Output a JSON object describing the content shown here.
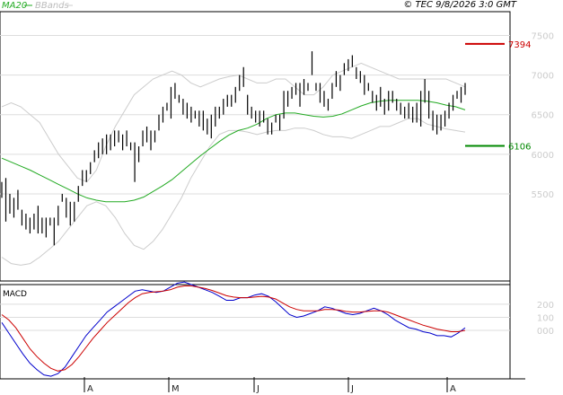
{
  "legend": {
    "ma20_label": "MA20",
    "bbands_label": "BBands",
    "ma20_color": "#22aa22",
    "bbands_color": "#cccccc"
  },
  "header": {
    "info": "© TEC 9/8/2026 3:0 GMT"
  },
  "macd_label": "MACD",
  "levels": {
    "resistance": {
      "label": "7394",
      "value": 7394,
      "color": "#cc0000"
    },
    "support": {
      "label": "6106",
      "value": 6106,
      "color": "#008800"
    }
  },
  "chart_data": {
    "type": "line",
    "price_panel": {
      "ylim": [
        4400,
        7800
      ],
      "yticks": [
        "5500",
        "6000",
        "6500",
        "7000",
        "7500"
      ],
      "price_ticks": [
        [
          5450,
          5650
        ],
        [
          5150,
          5700
        ],
        [
          5250,
          5500
        ],
        [
          5200,
          5450
        ],
        [
          5300,
          5550
        ],
        [
          5100,
          5300
        ],
        [
          5050,
          5250
        ],
        [
          5000,
          5200
        ],
        [
          5050,
          5250
        ],
        [
          5000,
          5350
        ],
        [
          5000,
          5200
        ],
        [
          4950,
          5200
        ],
        [
          5100,
          5200
        ],
        [
          4850,
          5200
        ],
        [
          5100,
          5350
        ],
        [
          5400,
          5500
        ],
        [
          5200,
          5450
        ],
        [
          5100,
          5400
        ],
        [
          5150,
          5400
        ],
        [
          5400,
          5600
        ],
        [
          5600,
          5800
        ],
        [
          5650,
          5800
        ],
        [
          5750,
          5900
        ],
        [
          5900,
          6050
        ],
        [
          5950,
          6150
        ],
        [
          6000,
          6200
        ],
        [
          6000,
          6250
        ],
        [
          6050,
          6250
        ],
        [
          6100,
          6300
        ],
        [
          6150,
          6300
        ],
        [
          6050,
          6250
        ],
        [
          6100,
          6300
        ],
        [
          6050,
          6150
        ],
        [
          5650,
          6150
        ],
        [
          5900,
          6100
        ],
        [
          6100,
          6300
        ],
        [
          6150,
          6350
        ],
        [
          6050,
          6300
        ],
        [
          6150,
          6300
        ],
        [
          6300,
          6500
        ],
        [
          6400,
          6600
        ],
        [
          6550,
          6650
        ],
        [
          6450,
          6850
        ],
        [
          6700,
          6900
        ],
        [
          6650,
          6750
        ],
        [
          6500,
          6700
        ],
        [
          6450,
          6650
        ],
        [
          6400,
          6600
        ],
        [
          6450,
          6550
        ],
        [
          6350,
          6550
        ],
        [
          6300,
          6550
        ],
        [
          6250,
          6450
        ],
        [
          6200,
          6500
        ],
        [
          6350,
          6600
        ],
        [
          6450,
          6600
        ],
        [
          6500,
          6700
        ],
        [
          6600,
          6750
        ],
        [
          6600,
          6750
        ],
        [
          6650,
          6850
        ],
        [
          6800,
          7000
        ],
        [
          6850,
          7100
        ],
        [
          6500,
          6750
        ],
        [
          6450,
          6600
        ],
        [
          6400,
          6550
        ],
        [
          6350,
          6550
        ],
        [
          6400,
          6550
        ],
        [
          6250,
          6450
        ],
        [
          6250,
          6400
        ],
        [
          6400,
          6500
        ],
        [
          6300,
          6500
        ],
        [
          6450,
          6800
        ],
        [
          6600,
          6800
        ],
        [
          6700,
          6850
        ],
        [
          6750,
          6900
        ],
        [
          6600,
          6900
        ],
        [
          6750,
          6950
        ],
        [
          6800,
          6900
        ],
        [
          7000,
          7300
        ],
        [
          6800,
          6900
        ],
        [
          6650,
          6900
        ],
        [
          6600,
          6800
        ],
        [
          6550,
          6700
        ],
        [
          6700,
          6900
        ],
        [
          6850,
          7050
        ],
        [
          6800,
          7000
        ],
        [
          7000,
          7150
        ],
        [
          7050,
          7200
        ],
        [
          7100,
          7250
        ],
        [
          6950,
          7100
        ],
        [
          6900,
          7050
        ],
        [
          6750,
          7000
        ],
        [
          6800,
          6900
        ],
        [
          6650,
          6800
        ],
        [
          6550,
          6750
        ],
        [
          6600,
          6850
        ],
        [
          6500,
          6700
        ],
        [
          6550,
          6800
        ],
        [
          6650,
          6800
        ],
        [
          6550,
          6700
        ],
        [
          6500,
          6650
        ],
        [
          6450,
          6600
        ],
        [
          6450,
          6650
        ],
        [
          6400,
          6600
        ],
        [
          6400,
          6650
        ],
        [
          6350,
          6800
        ],
        [
          6650,
          6950
        ],
        [
          6450,
          6800
        ],
        [
          6300,
          6550
        ],
        [
          6250,
          6500
        ],
        [
          6300,
          6500
        ],
        [
          6350,
          6550
        ],
        [
          6450,
          6650
        ],
        [
          6550,
          6750
        ],
        [
          6700,
          6800
        ],
        [
          6650,
          6850
        ],
        [
          6750,
          6900
        ]
      ],
      "ma20": [
        5950,
        5900,
        5850,
        5800,
        5740,
        5680,
        5620,
        5560,
        5500,
        5450,
        5420,
        5400,
        5400,
        5400,
        5420,
        5460,
        5530,
        5600,
        5680,
        5780,
        5880,
        5980,
        6070,
        6160,
        6240,
        6300,
        6330,
        6380,
        6450,
        6500,
        6520,
        6520,
        6500,
        6480,
        6470,
        6480,
        6510,
        6560,
        6610,
        6650,
        6670,
        6680,
        6680,
        6680,
        6680,
        6670,
        6650,
        6620,
        6600,
        6560
      ],
      "bb_upper": [
        6600,
        6650,
        6600,
        6500,
        6400,
        6200,
        6000,
        5850,
        5700,
        5650,
        5800,
        6100,
        6350,
        6550,
        6750,
        6850,
        6950,
        7000,
        7050,
        7000,
        6900,
        6850,
        6900,
        6950,
        6980,
        7000,
        6950,
        6900,
        6900,
        6950,
        6950,
        6850,
        6750,
        6750,
        6850,
        7000,
        7050,
        7100,
        7150,
        7100,
        7050,
        7000,
        6950,
        6950,
        6950,
        6950,
        6950,
        6950,
        6900,
        6850
      ],
      "bb_lower": [
        4700,
        4620,
        4600,
        4620,
        4700,
        4800,
        4900,
        5050,
        5200,
        5350,
        5400,
        5350,
        5200,
        5000,
        4850,
        4800,
        4900,
        5050,
        5250,
        5450,
        5700,
        5900,
        6100,
        6250,
        6300,
        6300,
        6280,
        6250,
        6280,
        6300,
        6300,
        6330,
        6330,
        6300,
        6250,
        6220,
        6220,
        6200,
        6250,
        6300,
        6350,
        6350,
        6400,
        6450,
        6450,
        6380,
        6350,
        6320,
        6300,
        6280
      ]
    },
    "macd_panel": {
      "ylim": [
        -370,
        350
      ],
      "yticks": [
        "200",
        "100",
        "000"
      ],
      "series": [
        {
          "values": [
            60,
            -20,
            -100,
            -180,
            -250,
            -300,
            -340,
            -350,
            -330,
            -280,
            -200,
            -120,
            -40,
            20,
            80,
            140,
            180,
            220,
            260,
            300,
            310,
            300,
            290,
            300,
            330,
            360,
            370,
            350,
            330,
            310,
            290,
            260,
            230,
            230,
            250,
            250,
            270,
            280,
            260,
            220,
            170,
            120,
            100,
            110,
            130,
            150,
            180,
            170,
            150,
            130,
            120,
            130,
            150,
            170,
            150,
            120,
            80,
            50,
            20,
            10,
            -10,
            -20,
            -40,
            -40,
            -50,
            -20,
            20
          ]
        },
        {
          "values": [
            120,
            80,
            20,
            -60,
            -140,
            -200,
            -250,
            -290,
            -310,
            -300,
            -260,
            -200,
            -130,
            -60,
            0,
            60,
            110,
            160,
            210,
            250,
            280,
            290,
            295,
            300,
            310,
            330,
            340,
            340,
            330,
            320,
            305,
            285,
            265,
            255,
            250,
            250,
            255,
            260,
            255,
            240,
            210,
            180,
            160,
            150,
            150,
            150,
            160,
            160,
            155,
            145,
            140,
            140,
            145,
            150,
            150,
            140,
            120,
            100,
            80,
            60,
            40,
            25,
            10,
            0,
            -10,
            -10,
            0
          ]
        }
      ]
    },
    "x_ticks": [
      "A",
      "M",
      "J",
      "J",
      "A"
    ]
  }
}
